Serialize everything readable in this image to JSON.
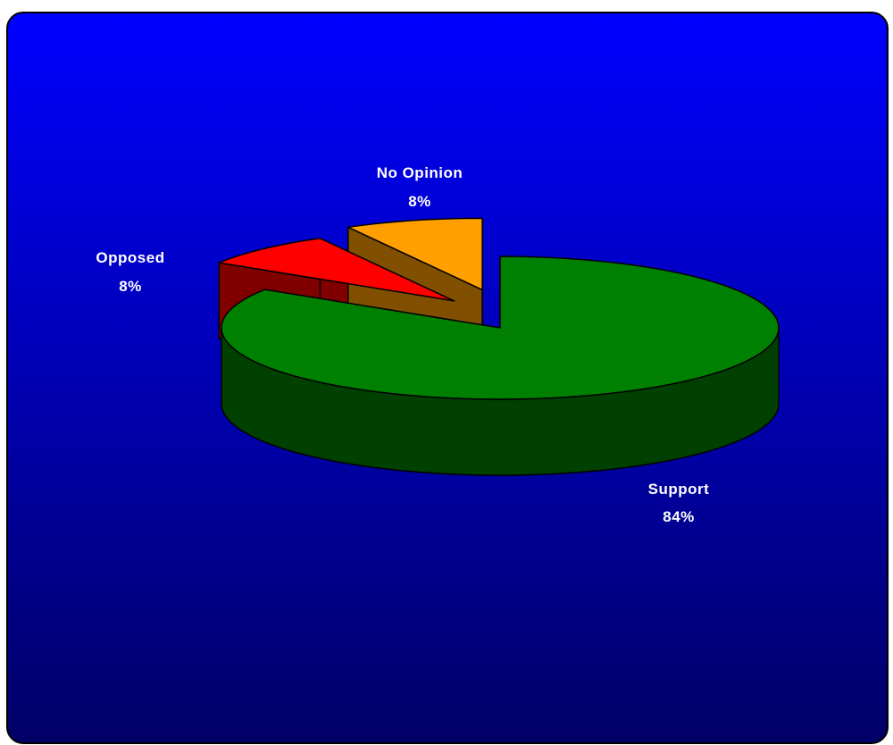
{
  "chart_data": {
    "type": "pie",
    "title": "",
    "legend": "none",
    "slices": [
      {
        "category": "Support",
        "value": 84,
        "label": "84%",
        "color": "#008000",
        "side_color": "#004000"
      },
      {
        "category": "Opposed",
        "value": 8,
        "label": "8%",
        "color": "#ff0000",
        "side_color": "#800000"
      },
      {
        "category": "No Opinion",
        "value": 8,
        "label": "8%",
        "color": "#ffa000",
        "side_color": "#805000"
      }
    ]
  },
  "background": {
    "top_color": "#0000ff",
    "bottom_color": "#000066"
  }
}
